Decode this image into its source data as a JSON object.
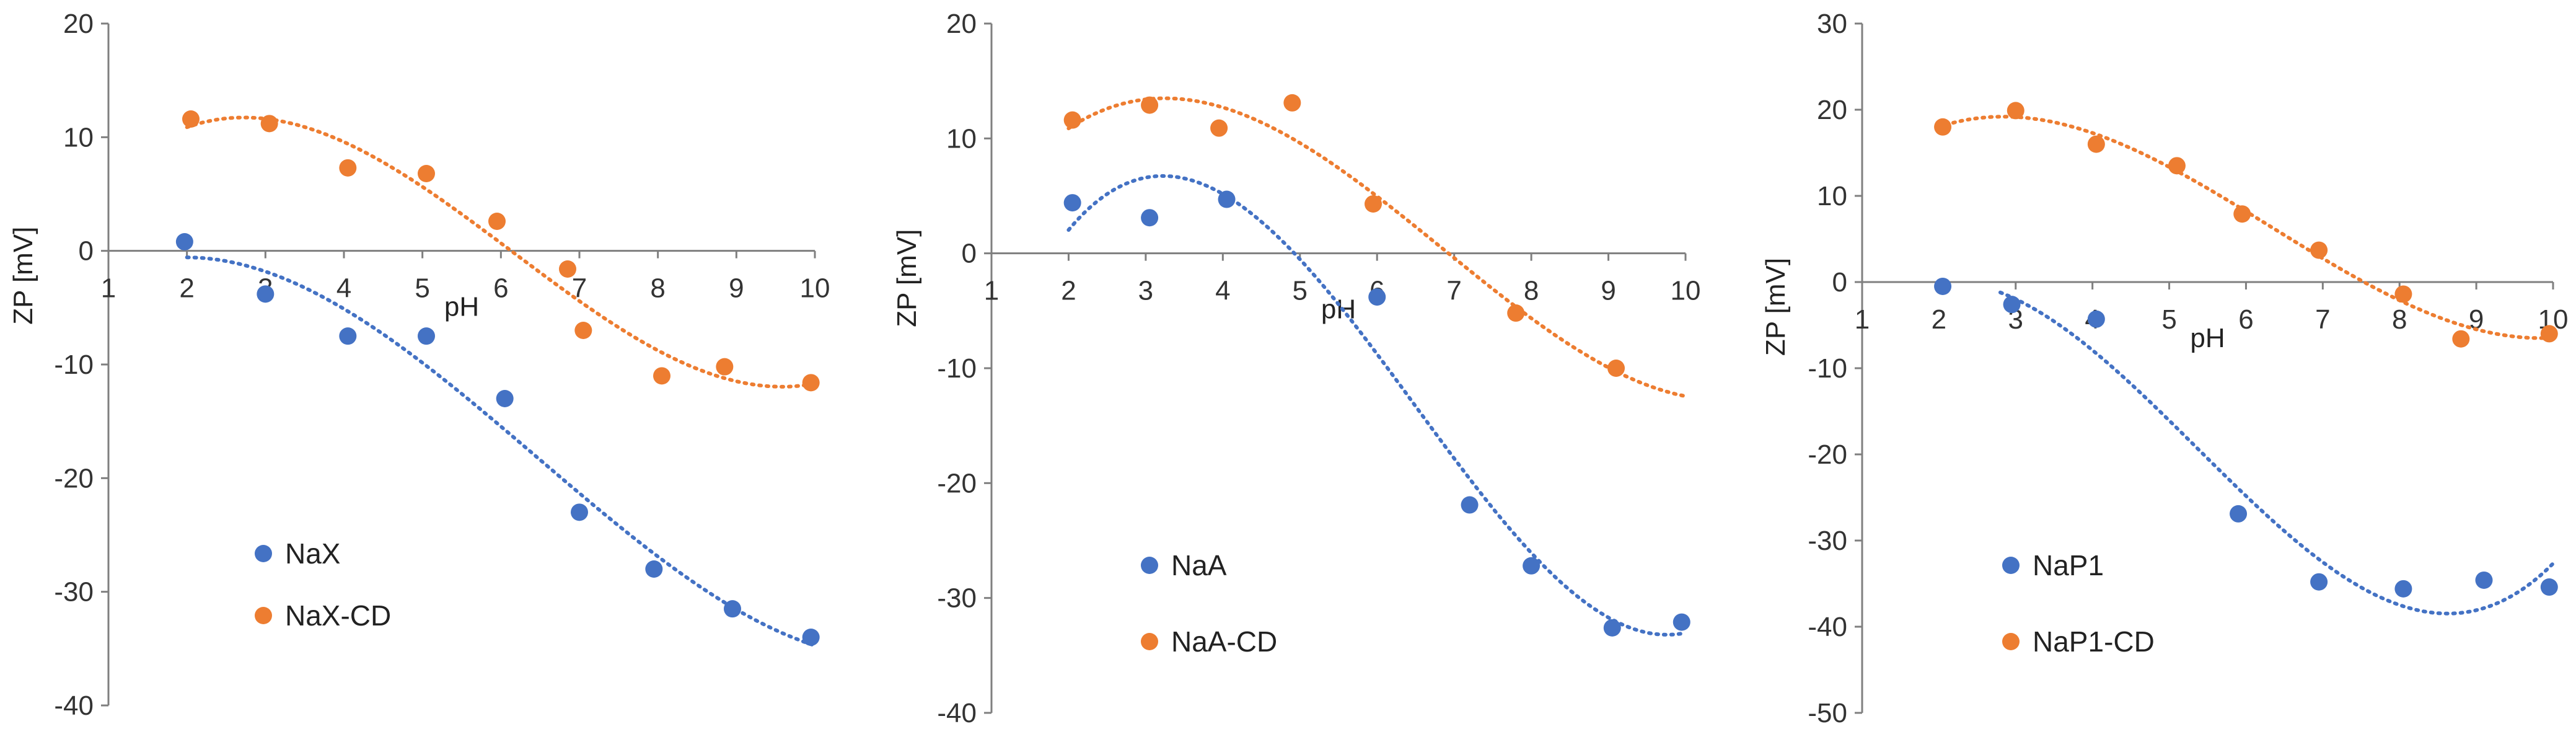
{
  "chart_data": [
    {
      "type": "scatter",
      "title": "",
      "xlabel": "pH",
      "ylabel": "ZP [mV]",
      "xlim": [
        1,
        10
      ],
      "ylim": [
        -40,
        20
      ],
      "x_ticks": [
        1,
        2,
        3,
        4,
        5,
        6,
        7,
        8,
        9,
        10
      ],
      "y_ticks": [
        -40,
        -30,
        -20,
        -10,
        0,
        10,
        20
      ],
      "legend_position": "bottom-left",
      "series": [
        {
          "name": "NaX",
          "color": "#4472C4",
          "points": [
            [
              1.97,
              0.8
            ],
            [
              3.0,
              -3.8
            ],
            [
              4.05,
              -7.5
            ],
            [
              5.05,
              -7.5
            ],
            [
              6.05,
              -13.0
            ],
            [
              7.0,
              -23.0
            ],
            [
              7.95,
              -28.0
            ],
            [
              8.95,
              -31.5
            ],
            [
              9.95,
              -34.0
            ]
          ],
          "trendline": "polynomial",
          "trend_x_range": [
            2,
            10
          ]
        },
        {
          "name": "NaX-CD",
          "color": "#ED7D31",
          "points": [
            [
              2.05,
              11.6
            ],
            [
              3.05,
              11.2
            ],
            [
              4.05,
              7.3
            ],
            [
              5.05,
              6.8
            ],
            [
              5.95,
              2.6
            ],
            [
              6.85,
              -1.6
            ],
            [
              7.05,
              -7.0
            ],
            [
              8.05,
              -11.0
            ],
            [
              8.85,
              -10.2
            ],
            [
              9.95,
              -11.6
            ]
          ],
          "trendline": "polynomial",
          "trend_x_range": [
            2,
            10
          ]
        }
      ]
    },
    {
      "type": "scatter",
      "title": "",
      "xlabel": "pH",
      "ylabel": "ZP [mV]",
      "xlim": [
        1,
        10
      ],
      "ylim": [
        -40,
        20
      ],
      "x_ticks": [
        1,
        2,
        3,
        4,
        5,
        6,
        7,
        8,
        9,
        10
      ],
      "y_ticks": [
        -40,
        -30,
        -20,
        -10,
        0,
        10,
        20
      ],
      "legend_position": "bottom-left",
      "series": [
        {
          "name": "NaA",
          "color": "#4472C4",
          "points": [
            [
              2.05,
              4.4
            ],
            [
              3.05,
              3.1
            ],
            [
              4.05,
              4.7
            ],
            [
              6.0,
              -3.8
            ],
            [
              7.2,
              -21.9
            ],
            [
              8.0,
              -27.2
            ],
            [
              9.05,
              -32.6
            ],
            [
              9.95,
              -32.1
            ]
          ],
          "trendline": "polynomial",
          "trend_x_range": [
            2,
            10
          ]
        },
        {
          "name": "NaA-CD",
          "color": "#ED7D31",
          "points": [
            [
              2.05,
              11.6
            ],
            [
              3.05,
              12.9
            ],
            [
              3.95,
              10.9
            ],
            [
              4.9,
              13.1
            ],
            [
              5.95,
              4.3
            ],
            [
              7.8,
              -5.2
            ],
            [
              9.1,
              -10.0
            ]
          ],
          "trendline": "polynomial",
          "trend_x_range": [
            2,
            10
          ]
        }
      ]
    },
    {
      "type": "scatter",
      "title": "",
      "xlabel": "pH",
      "ylabel": "ZP [mV]",
      "xlim": [
        1,
        10
      ],
      "ylim": [
        -50,
        30
      ],
      "x_ticks": [
        1,
        2,
        3,
        4,
        5,
        6,
        7,
        8,
        9,
        10
      ],
      "y_ticks": [
        -50,
        -40,
        -30,
        -20,
        -10,
        0,
        10,
        20,
        30
      ],
      "legend_position": "bottom-left",
      "series": [
        {
          "name": "NaP1",
          "color": "#4472C4",
          "points": [
            [
              2.05,
              -0.5
            ],
            [
              2.95,
              -2.6
            ],
            [
              4.05,
              -4.3
            ],
            [
              5.9,
              -26.9
            ],
            [
              6.95,
              -34.8
            ],
            [
              8.05,
              -35.6
            ],
            [
              9.1,
              -34.6
            ],
            [
              9.95,
              -35.4
            ]
          ],
          "trendline": "polynomial",
          "trend_x_range": [
            2.8,
            10
          ]
        },
        {
          "name": "NaP1-CD",
          "color": "#ED7D31",
          "points": [
            [
              2.05,
              18.0
            ],
            [
              3.0,
              19.9
            ],
            [
              4.05,
              16.0
            ],
            [
              5.1,
              13.5
            ],
            [
              5.95,
              7.9
            ],
            [
              6.95,
              3.7
            ],
            [
              8.05,
              -1.4
            ],
            [
              8.8,
              -6.6
            ],
            [
              9.95,
              -6.0
            ]
          ],
          "trendline": "polynomial",
          "trend_x_range": [
            2,
            10
          ]
        }
      ]
    }
  ]
}
